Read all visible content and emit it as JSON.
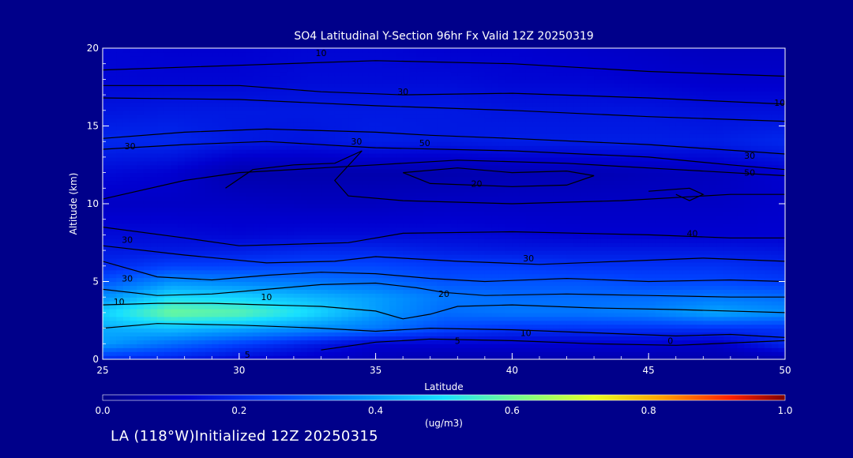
{
  "chart_data": {
    "type": "heatmap",
    "title": "SO4 Latitudinal Y-Section 96hr  Fx Valid 12Z 20250319",
    "xlabel": "Latitude",
    "ylabel": "Altitude (km)",
    "xlim": [
      25,
      50
    ],
    "ylim": [
      0,
      20
    ],
    "x_ticks": [
      25,
      30,
      35,
      40,
      45,
      50
    ],
    "y_ticks": [
      0,
      5,
      10,
      15,
      20
    ],
    "colorbar": {
      "label": "(ug/m3)",
      "range": [
        0.0,
        1.0
      ],
      "ticks": [
        "0.0",
        "0.2",
        "0.4",
        "0.6",
        "0.8",
        "1.0"
      ]
    },
    "contour_labels": [
      "10",
      "30",
      "10",
      "30",
      "30",
      "50",
      "30",
      "50",
      "20",
      "30",
      "40",
      "30",
      "30",
      "20",
      "10",
      "10",
      "0",
      "5",
      "5",
      "10"
    ],
    "x": [
      25,
      27.5,
      30,
      32.5,
      35,
      37.5,
      40,
      42.5,
      45,
      47.5,
      50
    ],
    "y": [
      0,
      1,
      2,
      3,
      4,
      5,
      6,
      7,
      8,
      10,
      12,
      14,
      16,
      18,
      20
    ],
    "z": [
      [
        0.2,
        0.18,
        0.13,
        0.1,
        0.08,
        0.06,
        0.06,
        0.06,
        0.06,
        0.06,
        0.05
      ],
      [
        0.4,
        0.32,
        0.25,
        0.18,
        0.12,
        0.12,
        0.12,
        0.12,
        0.12,
        0.1,
        0.2
      ],
      [
        0.42,
        0.45,
        0.42,
        0.38,
        0.34,
        0.26,
        0.22,
        0.22,
        0.22,
        0.22,
        0.22
      ],
      [
        0.48,
        0.6,
        0.58,
        0.5,
        0.4,
        0.32,
        0.34,
        0.34,
        0.36,
        0.42,
        0.38
      ],
      [
        0.38,
        0.5,
        0.48,
        0.44,
        0.4,
        0.34,
        0.32,
        0.32,
        0.32,
        0.34,
        0.32
      ],
      [
        0.28,
        0.38,
        0.36,
        0.34,
        0.32,
        0.28,
        0.28,
        0.28,
        0.26,
        0.26,
        0.24
      ],
      [
        0.2,
        0.25,
        0.25,
        0.26,
        0.26,
        0.24,
        0.24,
        0.22,
        0.22,
        0.22,
        0.2
      ],
      [
        0.17,
        0.17,
        0.18,
        0.2,
        0.2,
        0.18,
        0.17,
        0.17,
        0.17,
        0.17,
        0.16
      ],
      [
        0.14,
        0.14,
        0.13,
        0.14,
        0.14,
        0.14,
        0.13,
        0.12,
        0.12,
        0.12,
        0.12
      ],
      [
        0.1,
        0.1,
        0.1,
        0.09,
        0.09,
        0.1,
        0.1,
        0.1,
        0.1,
        0.1,
        0.11
      ],
      [
        0.14,
        0.12,
        0.06,
        0.06,
        0.06,
        0.06,
        0.07,
        0.07,
        0.08,
        0.09,
        0.12
      ],
      [
        0.2,
        0.2,
        0.17,
        0.16,
        0.18,
        0.17,
        0.18,
        0.18,
        0.18,
        0.18,
        0.2
      ],
      [
        0.16,
        0.17,
        0.17,
        0.17,
        0.17,
        0.17,
        0.16,
        0.16,
        0.16,
        0.15,
        0.15
      ],
      [
        0.13,
        0.13,
        0.13,
        0.14,
        0.14,
        0.14,
        0.13,
        0.13,
        0.12,
        0.11,
        0.11
      ],
      [
        0.13,
        0.12,
        0.12,
        0.13,
        0.13,
        0.12,
        0.12,
        0.11,
        0.1,
        0.09,
        0.09
      ]
    ],
    "grid": false
  },
  "caption": "LA (118°W)Initialized 12Z 20250315"
}
